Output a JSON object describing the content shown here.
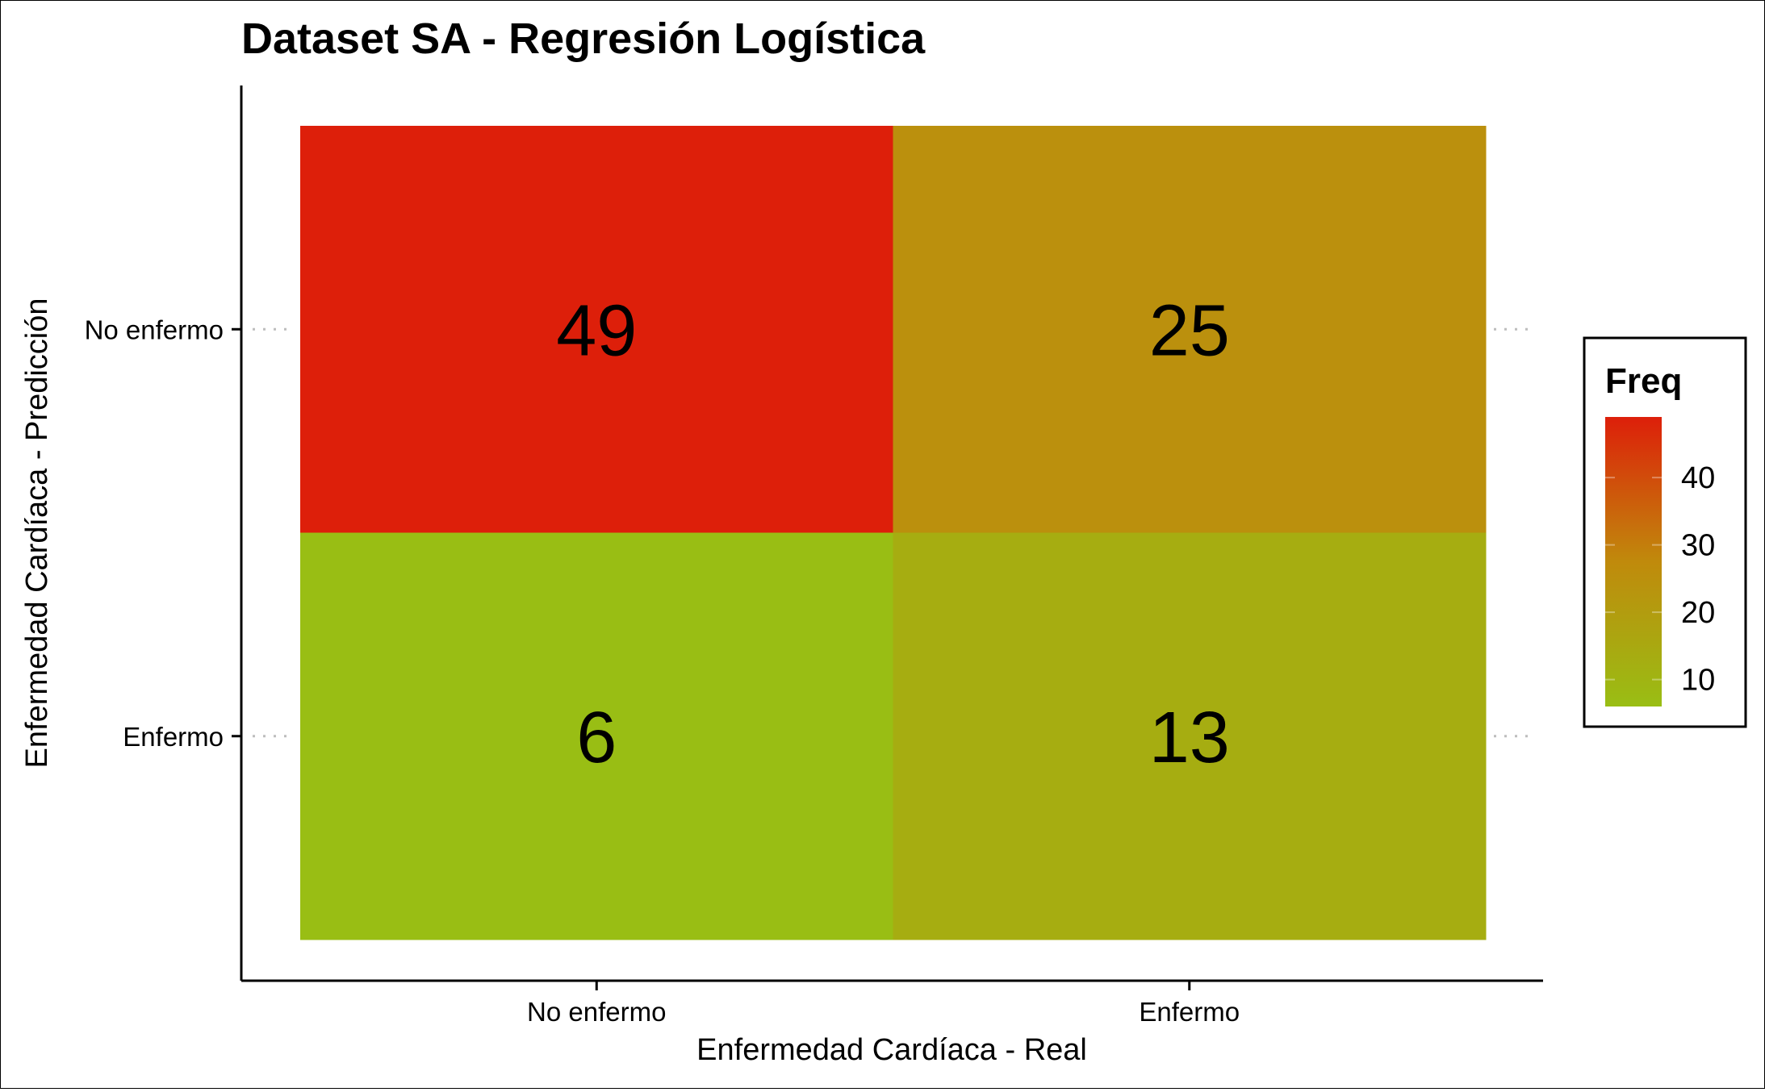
{
  "chart_data": {
    "type": "heatmap",
    "title": "Dataset SA - Regresión Logística",
    "xlabel": "Enfermedad Cardíaca - Real",
    "ylabel": "Enfermedad Cardíaca - Predicción",
    "x_categories": [
      "No enfermo",
      "Enfermo"
    ],
    "y_categories": [
      "No enfermo",
      "Enfermo"
    ],
    "cells": [
      {
        "x": "No enfermo",
        "y": "No enfermo",
        "value": 49
      },
      {
        "x": "Enfermo",
        "y": "No enfermo",
        "value": 25
      },
      {
        "x": "No enfermo",
        "y": "Enfermo",
        "value": 6
      },
      {
        "x": "Enfermo",
        "y": "Enfermo",
        "value": 13
      }
    ],
    "legend": {
      "title": "Freq",
      "ticks": [
        10,
        20,
        30,
        40
      ],
      "range": [
        6,
        49
      ],
      "low_color": "#99BE14",
      "high_color": "#DD1F0A",
      "position": "right"
    },
    "grid": false
  }
}
